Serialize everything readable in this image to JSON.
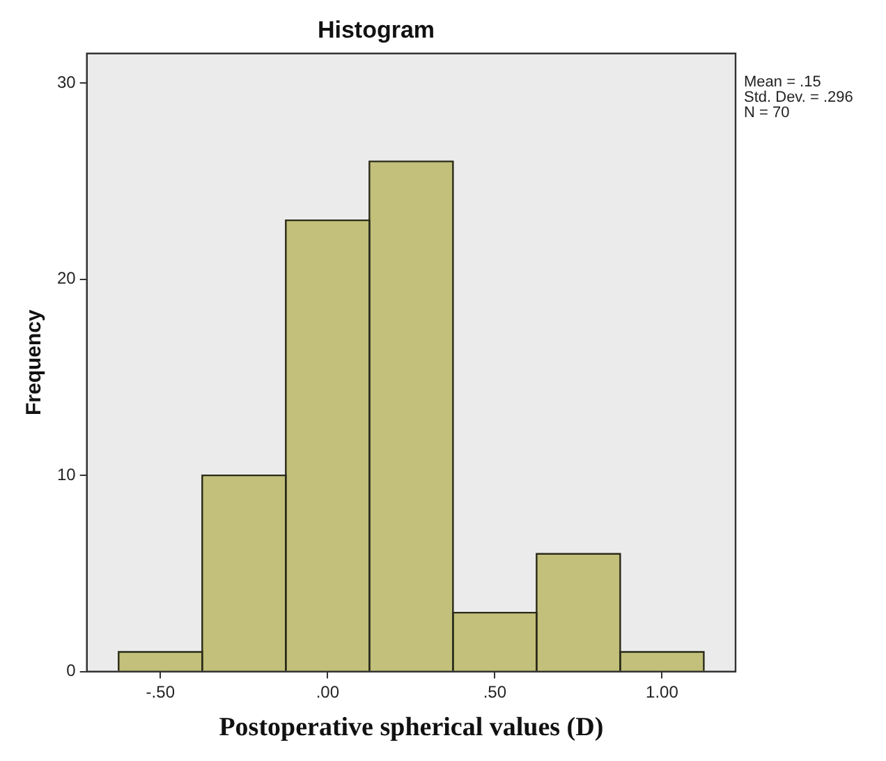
{
  "chart_data": {
    "type": "histogram",
    "title": "Histogram",
    "xlabel": "Postoperative spherical values (D)",
    "ylabel": "Frequency",
    "bins": [
      -0.625,
      -0.375,
      -0.125,
      0.125,
      0.375,
      0.625,
      0.875,
      1.125
    ],
    "values": [
      1,
      10,
      23,
      26,
      3,
      6,
      1
    ],
    "color": "#c2c07a",
    "xlim": [
      -0.72,
      1.22
    ],
    "xticks": [
      {
        "value": -0.5,
        "label": "-.50"
      },
      {
        "value": 0,
        "label": ".00"
      },
      {
        "value": 0.5,
        "label": ".50"
      },
      {
        "value": 1,
        "label": "1.00"
      }
    ],
    "ylim": [
      0,
      31.5
    ],
    "yticks": [
      0,
      10,
      20,
      30
    ],
    "grid": false,
    "legend": false,
    "annotations": [
      "Mean = .15",
      "Std. Dev. = .296",
      "N = 70"
    ]
  }
}
